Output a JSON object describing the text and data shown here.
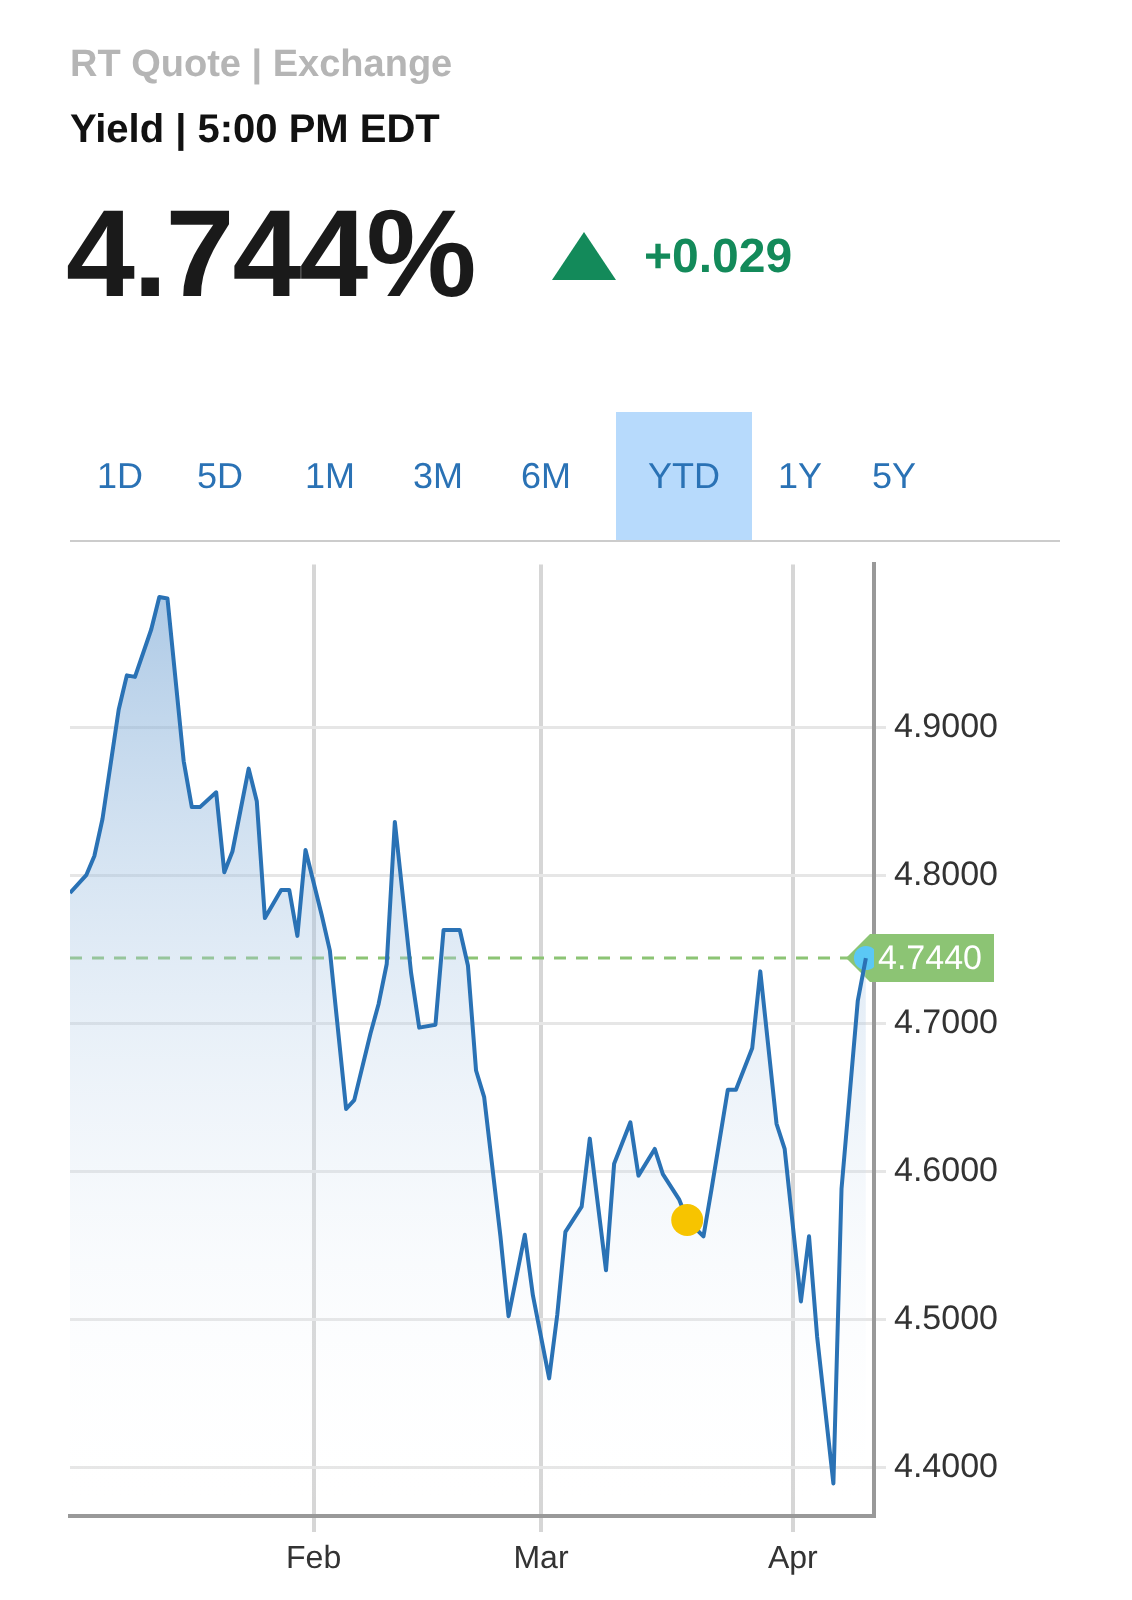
{
  "chart_data": {
    "type": "area",
    "title": "Yield | 5:00 PM EDT",
    "annotations": [
      "RT Quote | Exchange",
      "4.744%",
      "+0.029",
      "1D",
      "5D",
      "1M",
      "3M",
      "6M",
      "YTD",
      "1Y",
      "5Y"
    ],
    "x": [
      "--01-02",
      "--01-04",
      "--01-05",
      "--01-06",
      "--01-08",
      "--01-09",
      "--01-10",
      "--01-12",
      "--01-13",
      "--01-14",
      "--01-16",
      "--01-17",
      "--01-18",
      "--01-20",
      "--01-21",
      "--01-22",
      "--01-24",
      "--01-25",
      "--01-26",
      "--01-28",
      "--01-29",
      "--01-30",
      "--01-31",
      "--02-02",
      "--02-03",
      "--02-05",
      "--02-06",
      "--02-08",
      "--02-09",
      "--02-10",
      "--02-11",
      "--02-13",
      "--02-14",
      "--02-16",
      "--02-17",
      "--02-19",
      "--02-20",
      "--02-21",
      "--02-22",
      "--02-24",
      "--02-25",
      "--02-27",
      "--02-28",
      "--03-02",
      "--03-03",
      "--03-04",
      "--03-06",
      "--03-07",
      "--03-09",
      "--03-10",
      "--03-12",
      "--03-13",
      "--03-15",
      "--03-16",
      "--03-18",
      "--03-19",
      "--03-21",
      "--03-22",
      "--03-24",
      "--03-25",
      "--03-27",
      "--03-28",
      "--03-30",
      "--03-31",
      "--04-02",
      "--04-03",
      "--04-04",
      "--04-06",
      "--04-07",
      "--04-09",
      "--04-10"
    ],
    "series": [
      {
        "color": "#2a72b5",
        "values": [
          4.788,
          4.8,
          4.813,
          4.838,
          4.912,
          4.935,
          4.934,
          4.966,
          4.988,
          4.987,
          4.877,
          4.846,
          4.846,
          4.856,
          4.802,
          4.816,
          4.872,
          4.85,
          4.771,
          4.79,
          4.79,
          4.759,
          4.817,
          4.773,
          4.749,
          4.642,
          4.648,
          4.693,
          4.713,
          4.74,
          4.836,
          4.734,
          4.697,
          4.699,
          4.763,
          4.763,
          4.739,
          4.668,
          4.65,
          4.556,
          4.502,
          4.557,
          4.516,
          4.46,
          4.503,
          4.559,
          4.576,
          4.622,
          4.533,
          4.605,
          4.633,
          4.597,
          4.615,
          4.598,
          4.581,
          4.567,
          4.556,
          4.588,
          4.655,
          4.655,
          4.683,
          4.735,
          4.632,
          4.615,
          4.512,
          4.556,
          4.488,
          4.389,
          4.588,
          4.715,
          4.744
        ]
      },
      {
        "type": "scatter",
        "color": "#f7c400",
        "x": [
          "--03-19"
        ],
        "values": [
          4.567
        ]
      },
      {
        "type": "scatter",
        "color": "#5bc8f5",
        "x": [
          "--04-10"
        ],
        "values": [
          4.744
        ]
      }
    ],
    "xlim": [
      "--01-02",
      "--04-11"
    ],
    "xticks": [
      {
        "value": "--02-01",
        "label": "Feb"
      },
      {
        "value": "--03-01",
        "label": "Mar"
      },
      {
        "value": "--04-01",
        "label": "Apr"
      }
    ],
    "ylim": [
      4.367,
      5.01
    ],
    "yticks": [
      {
        "value": 4.4,
        "label": "4.4000"
      },
      {
        "value": 4.5,
        "label": "4.5000"
      },
      {
        "value": 4.6,
        "label": "4.6000"
      },
      {
        "value": 4.7,
        "label": "4.7000"
      },
      {
        "value": 4.8,
        "label": "4.8000"
      },
      {
        "value": 4.9,
        "label": "4.9000"
      }
    ],
    "ref_lines": [
      {
        "axis": "y",
        "value": 4.744,
        "label": "4.7440",
        "color": "#8cc474",
        "line_style": "dashed"
      }
    ],
    "grid": true,
    "legend": false
  }
}
